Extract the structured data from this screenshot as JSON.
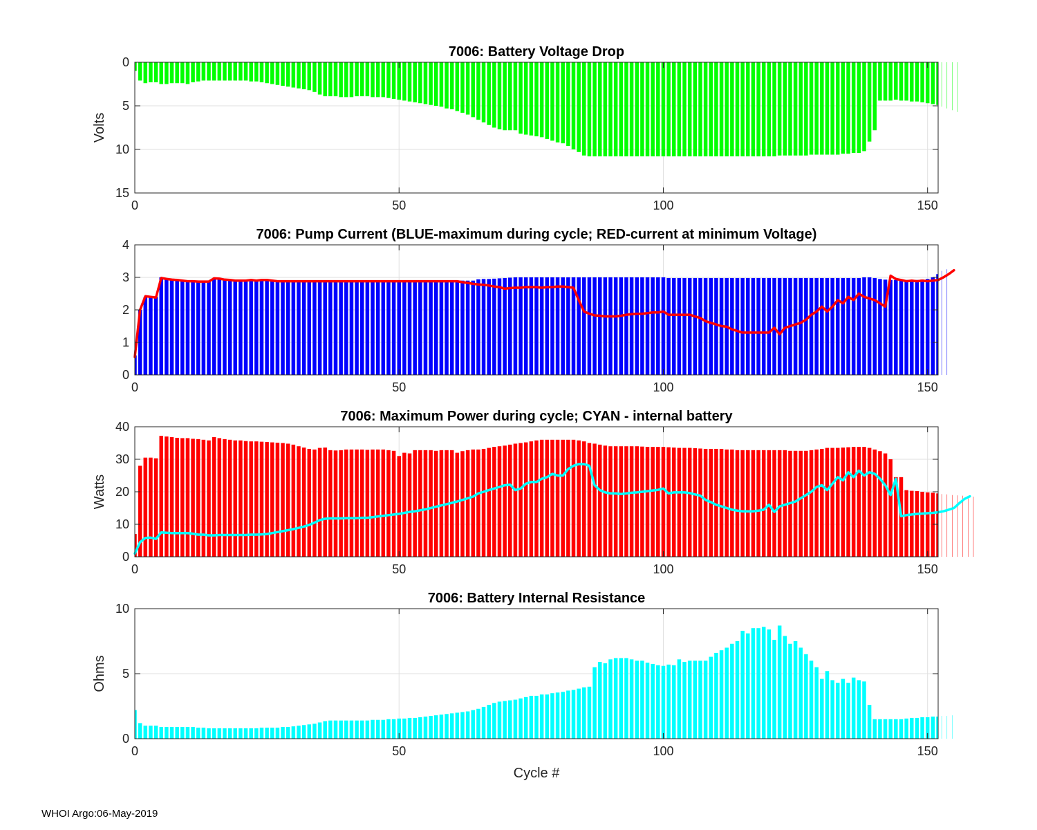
{
  "footer": "WHOI Argo:06-May-2019",
  "colors": {
    "green": "#00ff00",
    "blue": "#0000ff",
    "red": "#ff0000",
    "cyan": "#00ffff"
  },
  "chart_data": [
    {
      "type": "bar",
      "title": "7006: Battery Voltage Drop",
      "xlabel": "",
      "ylabel": "Volts",
      "xlim": [
        0,
        152
      ],
      "xticks": [
        0,
        50,
        100,
        150
      ],
      "ylim": [
        0,
        15
      ],
      "yticks": [
        0,
        5,
        10,
        15
      ],
      "y_reversed": true,
      "grid": true,
      "series": [
        {
          "values": [
            1.0,
            2.1,
            2.4,
            2.3,
            2.3,
            2.5,
            2.5,
            2.4,
            2.4,
            2.4,
            2.5,
            2.3,
            2.2,
            2.1,
            2.1,
            2.1,
            2.1,
            2.1,
            2.1,
            2.1,
            2.1,
            2.1,
            2.2,
            2.2,
            2.3,
            2.4,
            2.5,
            2.6,
            2.7,
            2.8,
            2.9,
            3.0,
            3.1,
            3.2,
            3.4,
            3.7,
            3.9,
            3.9,
            3.9,
            4.0,
            4.0,
            4.0,
            3.9,
            3.9,
            3.9,
            4.0,
            4.0,
            4.0,
            4.1,
            4.2,
            4.3,
            4.4,
            4.5,
            4.6,
            4.7,
            4.8,
            4.9,
            5.0,
            5.1,
            5.3,
            5.4,
            5.6,
            5.8,
            6.0,
            6.3,
            6.6,
            6.9,
            7.2,
            7.5,
            7.7,
            7.8,
            7.8,
            7.8,
            8.2,
            8.3,
            8.4,
            8.5,
            8.6,
            8.8,
            9.0,
            9.2,
            9.3,
            9.6,
            10.0,
            10.3,
            10.7,
            10.8,
            10.8,
            10.8,
            10.8,
            10.8,
            10.8,
            10.8,
            10.8,
            10.8,
            10.8,
            10.8,
            10.8,
            10.8,
            10.8,
            10.8,
            10.8,
            10.8,
            10.8,
            10.8,
            10.8,
            10.8,
            10.8,
            10.8,
            10.8,
            10.8,
            10.8,
            10.8,
            10.8,
            10.8,
            10.8,
            10.8,
            10.8,
            10.8,
            10.8,
            10.8,
            10.8,
            10.7,
            10.7,
            10.7,
            10.7,
            10.7,
            10.7,
            10.6,
            10.6,
            10.6,
            10.6,
            10.6,
            10.6,
            10.5,
            10.5,
            10.4,
            10.4,
            10.2,
            9.1,
            7.8,
            4.4,
            4.4,
            4.4,
            4.3,
            4.4,
            4.4,
            4.5,
            4.5,
            4.6,
            4.7,
            4.8,
            4.9,
            5.1,
            5.3,
            5.5,
            5.7
          ]
        }
      ]
    },
    {
      "type": "bar",
      "title": "7006: Pump Current (BLUE-maximum during cycle; RED-current at minimum Voltage)",
      "xlabel": "",
      "ylabel": "",
      "xlim": [
        0,
        152
      ],
      "xticks": [
        0,
        50,
        100,
        150
      ],
      "ylim": [
        0,
        4
      ],
      "yticks": [
        0,
        1,
        2,
        3,
        4
      ],
      "grid": true,
      "series": [
        {
          "type": "bar",
          "color": "#0000ff",
          "values": [
            0.6,
            2.0,
            2.4,
            2.4,
            2.4,
            3.0,
            2.95,
            2.92,
            2.9,
            2.88,
            2.88,
            2.87,
            2.87,
            2.87,
            2.87,
            2.97,
            2.97,
            2.93,
            2.9,
            2.9,
            2.9,
            2.9,
            2.9,
            2.9,
            2.9,
            2.9,
            2.9,
            2.9,
            2.9,
            2.9,
            2.9,
            2.9,
            2.9,
            2.9,
            2.9,
            2.9,
            2.9,
            2.9,
            2.9,
            2.9,
            2.9,
            2.9,
            2.9,
            2.9,
            2.9,
            2.9,
            2.9,
            2.9,
            2.9,
            2.9,
            2.9,
            2.9,
            2.9,
            2.9,
            2.9,
            2.9,
            2.9,
            2.9,
            2.9,
            2.9,
            2.9,
            2.9,
            2.9,
            2.9,
            2.9,
            2.94,
            2.95,
            2.95,
            2.96,
            2.97,
            2.98,
            2.99,
            3.0,
            3.0,
            3.0,
            3.0,
            3.0,
            3.0,
            3.0,
            3.0,
            3.0,
            3.0,
            3.0,
            3.0,
            3.0,
            3.0,
            3.0,
            3.0,
            3.0,
            3.0,
            3.0,
            3.0,
            3.0,
            3.0,
            3.0,
            3.0,
            3.0,
            3.0,
            3.0,
            3.0,
            3.0,
            2.98,
            2.98,
            2.98,
            2.98,
            2.98,
            2.98,
            2.98,
            2.98,
            2.98,
            2.98,
            2.98,
            2.98,
            2.98,
            2.98,
            2.98,
            2.98,
            2.98,
            2.98,
            2.98,
            2.98,
            2.98,
            2.98,
            2.98,
            2.98,
            2.98,
            2.98,
            2.98,
            2.98,
            2.98,
            2.98,
            2.98,
            2.98,
            2.98,
            2.98,
            2.98,
            2.98,
            2.98,
            3.0,
            3.0,
            2.98,
            2.95,
            2.93,
            2.92,
            2.92,
            2.92,
            2.92,
            2.92,
            2.92,
            2.93,
            2.95,
            3.0,
            3.1,
            3.2,
            3.25
          ]
        },
        {
          "type": "line",
          "color": "#ff0000",
          "values": [
            0.55,
            2.0,
            2.42,
            2.4,
            2.38,
            2.98,
            2.95,
            2.93,
            2.92,
            2.9,
            2.88,
            2.88,
            2.87,
            2.87,
            2.87,
            2.97,
            2.96,
            2.93,
            2.92,
            2.9,
            2.9,
            2.9,
            2.92,
            2.9,
            2.92,
            2.92,
            2.9,
            2.88,
            2.88,
            2.88,
            2.88,
            2.88,
            2.88,
            2.88,
            2.88,
            2.88,
            2.88,
            2.88,
            2.88,
            2.88,
            2.88,
            2.88,
            2.88,
            2.88,
            2.88,
            2.88,
            2.88,
            2.88,
            2.88,
            2.88,
            2.88,
            2.88,
            2.88,
            2.88,
            2.88,
            2.88,
            2.88,
            2.88,
            2.88,
            2.88,
            2.88,
            2.88,
            2.85,
            2.83,
            2.8,
            2.78,
            2.77,
            2.75,
            2.72,
            2.7,
            2.65,
            2.67,
            2.68,
            2.68,
            2.7,
            2.7,
            2.7,
            2.68,
            2.7,
            2.7,
            2.72,
            2.72,
            2.7,
            2.68,
            2.3,
            1.95,
            1.88,
            1.83,
            1.82,
            1.8,
            1.8,
            1.8,
            1.82,
            1.85,
            1.87,
            1.88,
            1.88,
            1.9,
            1.92,
            1.92,
            1.95,
            1.85,
            1.85,
            1.85,
            1.85,
            1.85,
            1.8,
            1.75,
            1.65,
            1.6,
            1.55,
            1.5,
            1.48,
            1.4,
            1.35,
            1.3,
            1.3,
            1.3,
            1.3,
            1.3,
            1.3,
            1.45,
            1.25,
            1.45,
            1.5,
            1.55,
            1.6,
            1.7,
            1.85,
            1.95,
            2.1,
            1.95,
            2.1,
            2.3,
            2.2,
            2.4,
            2.3,
            2.5,
            2.4,
            2.35,
            2.3,
            2.2,
            2.1,
            3.05,
            2.95,
            2.92,
            2.88,
            2.9,
            2.88,
            2.9,
            2.88,
            2.9,
            2.92,
            3.0,
            3.1,
            3.22
          ]
        }
      ]
    },
    {
      "type": "bar",
      "title": "7006: Maximum Power during cycle; CYAN - internal battery",
      "xlabel": "",
      "ylabel": "Watts",
      "xlim": [
        0,
        152
      ],
      "xticks": [
        0,
        50,
        100,
        150
      ],
      "ylim": [
        0,
        40
      ],
      "yticks": [
        0,
        10,
        20,
        30,
        40
      ],
      "grid": true,
      "series": [
        {
          "type": "bar",
          "color": "#ff0000",
          "values": [
            7.0,
            28.0,
            30.5,
            30.5,
            30.3,
            37.2,
            37.0,
            36.8,
            36.6,
            36.5,
            36.5,
            36.3,
            36.2,
            36.0,
            35.8,
            36.8,
            36.5,
            36.2,
            36.0,
            35.8,
            35.8,
            35.6,
            35.5,
            35.5,
            35.4,
            35.3,
            35.2,
            35.1,
            35.0,
            34.8,
            34.5,
            34.0,
            33.6,
            33.2,
            33.0,
            33.5,
            33.6,
            32.8,
            32.7,
            32.8,
            33.0,
            33.0,
            33.0,
            33.0,
            32.9,
            33.0,
            33.0,
            33.0,
            32.8,
            32.6,
            31.0,
            32.0,
            31.8,
            32.8,
            32.8,
            32.8,
            32.8,
            32.6,
            32.8,
            32.8,
            32.8,
            32.0,
            32.5,
            32.8,
            33.0,
            33.0,
            33.2,
            33.5,
            33.8,
            34.0,
            34.2,
            34.5,
            34.8,
            35.0,
            35.2,
            35.5,
            35.8,
            36.0,
            36.0,
            36.0,
            36.0,
            36.0,
            36.0,
            36.0,
            35.8,
            35.5,
            35.0,
            34.8,
            34.5,
            34.2,
            34.0,
            34.0,
            34.0,
            34.0,
            34.0,
            34.0,
            33.9,
            33.8,
            33.8,
            33.8,
            33.8,
            33.7,
            33.6,
            33.5,
            33.5,
            33.5,
            33.4,
            33.3,
            33.2,
            33.2,
            33.2,
            33.2,
            33.0,
            33.0,
            32.8,
            32.8,
            32.8,
            32.8,
            32.8,
            32.8,
            32.8,
            32.8,
            32.8,
            32.8,
            32.6,
            32.6,
            32.6,
            32.6,
            32.8,
            33.0,
            33.2,
            33.5,
            33.5,
            33.5,
            33.6,
            33.7,
            33.8,
            33.8,
            33.8,
            33.5,
            33.0,
            32.5,
            31.8,
            30.0,
            24.5,
            24.5,
            20.5,
            20.3,
            20.2,
            20.0,
            19.8,
            19.7,
            19.5,
            19.3,
            19.2,
            19.0,
            18.9,
            18.8,
            18.7,
            18.5
          ]
        },
        {
          "type": "line",
          "color": "#00ffff",
          "values": [
            1.0,
            4.5,
            5.8,
            5.9,
            5.5,
            7.5,
            7.4,
            7.3,
            7.3,
            7.3,
            7.3,
            7.1,
            6.8,
            6.8,
            6.6,
            6.6,
            6.7,
            6.7,
            6.7,
            6.7,
            6.7,
            6.7,
            6.8,
            6.8,
            6.9,
            7.0,
            7.3,
            7.6,
            7.9,
            8.2,
            8.5,
            8.9,
            9.3,
            9.8,
            10.5,
            11.3,
            11.7,
            11.8,
            11.8,
            11.8,
            11.9,
            11.9,
            11.9,
            12.0,
            12.0,
            12.2,
            12.4,
            12.6,
            12.8,
            13.0,
            13.2,
            13.5,
            13.8,
            14.0,
            14.3,
            14.6,
            15.0,
            15.4,
            15.8,
            16.2,
            16.6,
            17.0,
            17.5,
            18.0,
            18.5,
            19.5,
            20.0,
            20.5,
            21.0,
            21.5,
            22.0,
            22.2,
            20.5,
            21.0,
            22.5,
            23.0,
            23.0,
            24.0,
            24.5,
            25.5,
            25.0,
            25.0,
            27.0,
            28.0,
            28.5,
            28.5,
            28.0,
            22.0,
            20.5,
            19.8,
            19.5,
            19.5,
            19.3,
            19.5,
            19.7,
            19.8,
            20.0,
            20.2,
            20.4,
            20.6,
            21.0,
            19.5,
            19.8,
            19.8,
            19.8,
            19.6,
            19.2,
            18.8,
            17.5,
            16.8,
            16.0,
            15.5,
            15.0,
            14.5,
            14.2,
            14.0,
            14.0,
            14.0,
            14.2,
            14.5,
            16.0,
            13.8,
            15.5,
            16.0,
            16.5,
            17.0,
            18.0,
            19.0,
            20.0,
            21.5,
            22.0,
            20.5,
            22.5,
            24.5,
            23.5,
            26.0,
            24.5,
            26.5,
            25.0,
            26.0,
            25.5,
            24.0,
            22.0,
            19.0,
            24.0,
            12.5,
            12.8,
            13.0,
            13.2,
            13.3,
            13.4,
            13.5,
            13.7,
            14.0,
            14.5,
            15.0,
            16.5,
            17.8,
            18.6
          ]
        }
      ]
    },
    {
      "type": "bar",
      "title": "7006: Battery Internal Resistance",
      "xlabel": "Cycle #",
      "ylabel": "Ohms",
      "xlim": [
        0,
        152
      ],
      "xticks": [
        0,
        50,
        100,
        150
      ],
      "ylim": [
        0,
        10
      ],
      "yticks": [
        0,
        5,
        10
      ],
      "grid": true,
      "series": [
        {
          "color": "#00ffff",
          "values": [
            2.2,
            1.2,
            1.0,
            1.0,
            1.0,
            0.9,
            0.9,
            0.9,
            0.9,
            0.9,
            0.9,
            0.9,
            0.85,
            0.85,
            0.8,
            0.8,
            0.8,
            0.8,
            0.8,
            0.8,
            0.8,
            0.8,
            0.8,
            0.8,
            0.85,
            0.85,
            0.85,
            0.85,
            0.9,
            0.9,
            0.95,
            1.0,
            1.05,
            1.1,
            1.15,
            1.25,
            1.35,
            1.4,
            1.4,
            1.4,
            1.4,
            1.4,
            1.4,
            1.4,
            1.4,
            1.45,
            1.45,
            1.45,
            1.5,
            1.5,
            1.55,
            1.55,
            1.6,
            1.6,
            1.65,
            1.7,
            1.75,
            1.8,
            1.85,
            1.9,
            1.95,
            2.0,
            2.05,
            2.1,
            2.2,
            2.3,
            2.45,
            2.6,
            2.75,
            2.85,
            2.9,
            2.95,
            3.0,
            3.1,
            3.2,
            3.3,
            3.3,
            3.4,
            3.4,
            3.5,
            3.55,
            3.6,
            3.7,
            3.75,
            3.85,
            3.95,
            4.0,
            5.5,
            5.9,
            5.8,
            6.1,
            6.2,
            6.2,
            6.2,
            6.1,
            6.0,
            6.0,
            5.85,
            5.75,
            5.65,
            5.6,
            5.7,
            5.65,
            6.1,
            5.9,
            6.0,
            6.0,
            6.0,
            6.0,
            6.3,
            6.6,
            6.8,
            7.0,
            7.3,
            7.5,
            8.3,
            8.1,
            8.5,
            8.5,
            8.6,
            8.4,
            7.6,
            8.7,
            7.9,
            7.3,
            7.5,
            7.0,
            6.5,
            6.0,
            5.5,
            4.6,
            5.2,
            4.5,
            4.3,
            4.6,
            4.3,
            4.7,
            4.5,
            4.4,
            2.6,
            1.5,
            1.5,
            1.5,
            1.5,
            1.5,
            1.5,
            1.55,
            1.6,
            1.6,
            1.65,
            1.65,
            1.7,
            1.7,
            1.75,
            1.75,
            1.8
          ]
        }
      ]
    }
  ]
}
